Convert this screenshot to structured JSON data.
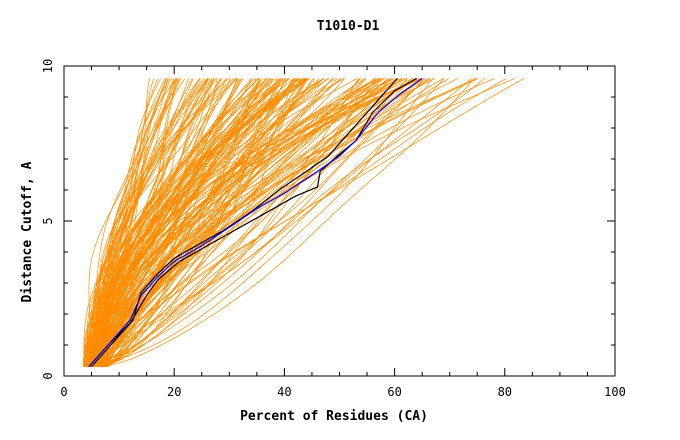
{
  "chart_data": {
    "type": "line",
    "title": "T1010-D1",
    "xlabel": "Percent of Residues (CA)",
    "ylabel": "Distance Cutoff, A",
    "xlim": [
      0,
      100
    ],
    "ylim": [
      0,
      10
    ],
    "x_ticks": [
      "0",
      "20",
      "40",
      "60",
      "80",
      "100"
    ],
    "y_ticks": [
      "0",
      "5",
      "10"
    ],
    "grid": false,
    "colors": {
      "models": "#ff8c00",
      "highlight_a": "#000000",
      "highlight_b": "#000000",
      "highlight_c": "#0000ff"
    },
    "curve_y_range": [
      0.3,
      9.6
    ],
    "model_band": {
      "description": "approximately 200 orange model curves",
      "start_x_range": [
        3.5,
        8
      ],
      "end_x_at_ymax_range": [
        15,
        86
      ]
    },
    "series": [
      {
        "name": "highlight-a",
        "color": "#000000",
        "x": [
          4.5,
          8,
          12,
          15,
          17,
          21,
          25,
          30,
          36,
          42,
          46,
          46.5,
          49,
          53,
          56,
          60,
          64
        ],
        "y": [
          0.3,
          1.0,
          1.7,
          2.6,
          3.1,
          3.7,
          4.1,
          4.6,
          5.2,
          5.8,
          6.1,
          6.6,
          7.0,
          7.6,
          8.5,
          9.2,
          9.6
        ]
      },
      {
        "name": "highlight-b",
        "color": "#000000",
        "x": [
          5,
          8.5,
          12.5,
          14,
          17,
          20,
          24,
          29,
          34,
          39,
          44,
          48,
          51,
          55,
          58,
          60.5
        ],
        "y": [
          0.3,
          1.0,
          1.8,
          2.7,
          3.3,
          3.8,
          4.2,
          4.7,
          5.3,
          6.0,
          6.6,
          7.1,
          7.7,
          8.5,
          9.1,
          9.6
        ]
      },
      {
        "name": "highlight-c",
        "color": "#0000ff",
        "x": [
          4.5,
          8,
          12,
          14,
          17,
          20,
          25,
          30,
          35,
          40,
          46,
          50,
          53,
          57,
          61,
          65
        ],
        "y": [
          0.3,
          1.0,
          1.8,
          2.6,
          3.2,
          3.7,
          4.2,
          4.8,
          5.4,
          5.9,
          6.6,
          7.1,
          7.6,
          8.5,
          9.1,
          9.6
        ]
      }
    ]
  }
}
